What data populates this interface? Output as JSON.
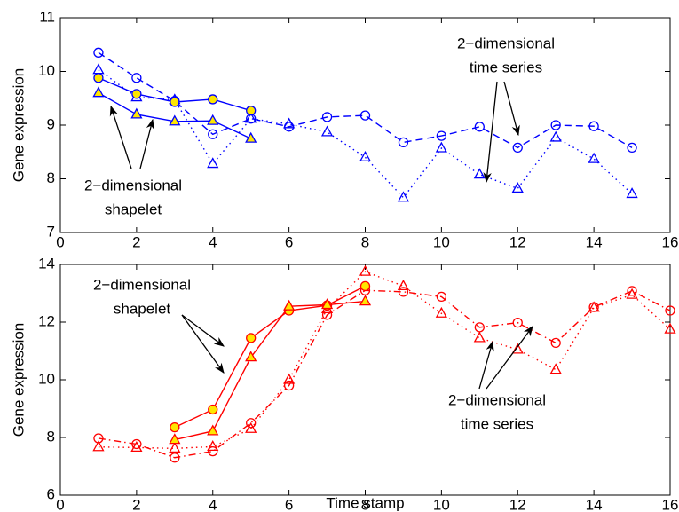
{
  "chart_data": [
    {
      "type": "line",
      "ylabel": "Gene expression",
      "xlim": [
        0,
        16
      ],
      "xticks": [
        0,
        2,
        4,
        6,
        8,
        10,
        12,
        14,
        16
      ],
      "ylim": [
        7,
        11
      ],
      "yticks": [
        7,
        8,
        9,
        10,
        11
      ],
      "series": [
        {
          "color": "#0000ff",
          "linestyle": "dashed",
          "marker": "circle",
          "marker_fill": "none",
          "x": [
            1,
            2,
            3,
            4,
            5,
            6,
            7,
            8,
            9,
            10,
            11,
            12,
            13,
            14,
            15
          ],
          "values": [
            10.35,
            9.88,
            9.45,
            8.83,
            9.12,
            8.97,
            9.15,
            9.18,
            8.68,
            8.8,
            8.97,
            8.58,
            9.0,
            8.98,
            8.58
          ]
        },
        {
          "color": "#0000ff",
          "linestyle": "dotted",
          "marker": "triangle",
          "marker_fill": "none",
          "x": [
            1,
            2,
            3,
            4,
            5,
            6,
            7,
            8,
            9,
            10,
            11,
            12,
            13,
            14,
            15
          ],
          "values": [
            10.03,
            9.52,
            9.47,
            8.28,
            9.12,
            9.02,
            8.87,
            8.4,
            7.65,
            8.57,
            8.08,
            7.82,
            8.77,
            8.37,
            7.72
          ]
        },
        {
          "color": "#0000ff",
          "linestyle": "solid",
          "marker": "circle",
          "marker_fill": "#ffe600",
          "x": [
            1,
            2,
            3,
            4,
            5
          ],
          "values": [
            9.88,
            9.58,
            9.43,
            9.48,
            9.27
          ]
        },
        {
          "color": "#0000ff",
          "linestyle": "solid",
          "marker": "triangle",
          "marker_fill": "#ffe600",
          "x": [
            1,
            2,
            3,
            4,
            5
          ],
          "values": [
            9.6,
            9.2,
            9.07,
            9.08,
            8.75
          ]
        }
      ],
      "annotations": [
        {
          "lines": [
            "2−dimensional",
            "time series"
          ]
        },
        {
          "lines": [
            "2−dimensional",
            "shapelet"
          ]
        }
      ]
    },
    {
      "type": "line",
      "xlabel": "Time stamp",
      "ylabel": "Gene expression",
      "xlim": [
        0,
        16
      ],
      "xticks": [
        0,
        2,
        4,
        6,
        8,
        10,
        12,
        14,
        16
      ],
      "ylim": [
        6,
        14
      ],
      "yticks": [
        6,
        8,
        10,
        12,
        14
      ],
      "series": [
        {
          "color": "#ff0000",
          "linestyle": "dashdot",
          "marker": "circle",
          "marker_fill": "none",
          "x": [
            1,
            2,
            3,
            4,
            5,
            6,
            7,
            8,
            9,
            10,
            11,
            12,
            13,
            14,
            15,
            16
          ],
          "values": [
            7.97,
            7.77,
            7.3,
            7.52,
            8.5,
            9.8,
            12.25,
            13.1,
            13.05,
            12.88,
            11.82,
            11.98,
            11.28,
            12.52,
            13.08,
            12.4
          ]
        },
        {
          "color": "#ff0000",
          "linestyle": "dotted",
          "marker": "triangle",
          "marker_fill": "none",
          "x": [
            1,
            2,
            3,
            4,
            5,
            6,
            7,
            8,
            9,
            10,
            11,
            12,
            13,
            14,
            15,
            16
          ],
          "values": [
            7.67,
            7.65,
            7.62,
            7.68,
            8.3,
            10.0,
            12.45,
            13.75,
            13.25,
            12.3,
            11.45,
            11.05,
            10.35,
            12.5,
            12.95,
            11.75
          ]
        },
        {
          "color": "#ff0000",
          "linestyle": "solid",
          "marker": "circle",
          "marker_fill": "#ffe600",
          "x": [
            3,
            4,
            5,
            6,
            7,
            8
          ],
          "values": [
            8.35,
            8.97,
            11.45,
            12.4,
            12.58,
            13.25
          ]
        },
        {
          "color": "#ff0000",
          "linestyle": "solid",
          "marker": "triangle",
          "marker_fill": "#ffe600",
          "x": [
            3,
            4,
            5,
            6,
            7,
            8
          ],
          "values": [
            7.92,
            8.22,
            10.78,
            12.55,
            12.6,
            12.72
          ]
        }
      ],
      "annotations": [
        {
          "lines": [
            "2−dimensional",
            "shapelet"
          ]
        },
        {
          "lines": [
            "2−dimensional",
            "time series"
          ]
        }
      ]
    }
  ]
}
